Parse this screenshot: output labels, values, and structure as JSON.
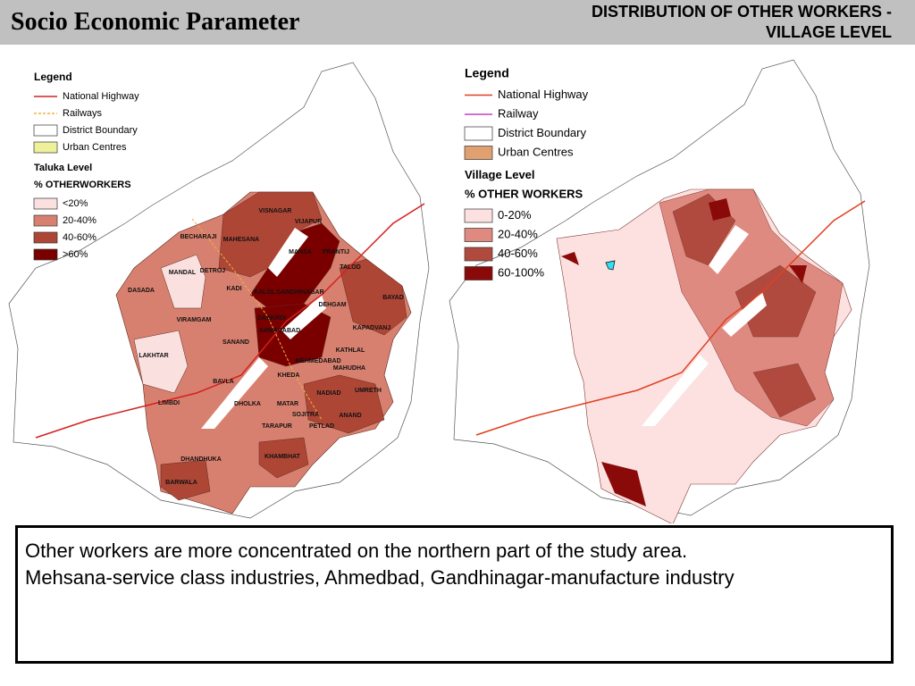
{
  "header": {
    "title": "Socio Economic Parameter",
    "subtitle_lines": [
      "DISTRIBUTION OF OTHER WORKERS -",
      "VILLAGE LEVEL"
    ]
  },
  "left_map": {
    "legend_title": "Legend",
    "items": [
      {
        "label": "National Highway",
        "color": "#d42020",
        "style": "line"
      },
      {
        "label": "Railways",
        "color": "#f0b040",
        "style": "dash"
      },
      {
        "label": "District Boundary",
        "color": "#ffffff",
        "style": "box"
      },
      {
        "label": "Urban Centres",
        "color": "#eef09a",
        "style": "box"
      }
    ],
    "level_title": "Taluka Level",
    "measure_title": "% OTHERWORKERS",
    "classes": [
      {
        "label": "<20%",
        "color": "#fbe0e0"
      },
      {
        "label": "20-40%",
        "color": "#d8806f"
      },
      {
        "label": "40-60%",
        "color": "#ae4636"
      },
      {
        "label": ">60%",
        "color": "#7a0000"
      }
    ],
    "talukas": [
      "VISNAGAR",
      "VIJAPUR",
      "BECHARAJI",
      "MAHESANA",
      "MANSA",
      "PRANTIJ",
      "TALOD",
      "MANDAL",
      "DETROJ",
      "KADI",
      "KALOL",
      "GANDHINAGAR",
      "BAYAD",
      "DASADA",
      "DEHGAM",
      "VIRAMGAM",
      "DASKROI",
      "AHMADABAD",
      "KAPADVANJ",
      "SANAND",
      "LAKHTAR",
      "MEHMEDABAD",
      "MAHUDHA",
      "KATHLAL",
      "BAVLA",
      "KHEDA",
      "NADIAD",
      "UMRETH",
      "LIMBDI",
      "DHOLKA",
      "MATAR",
      "SOJITRA",
      "ANAND",
      "PETLAD",
      "TARAPUR",
      "DHANDHUKA",
      "KHAMBHAT",
      "BARWALA"
    ]
  },
  "right_map": {
    "legend_title": "Legend",
    "items": [
      {
        "label": "National Highway",
        "color": "#e04020",
        "style": "line"
      },
      {
        "label": "Railway",
        "color": "#c040c0",
        "style": "line"
      },
      {
        "label": "District Boundary",
        "color": "#ffffff",
        "style": "box"
      },
      {
        "label": "Urban Centres",
        "color": "#e0a070",
        "style": "box"
      }
    ],
    "level_title": "Village Level",
    "measure_title": "% OTHER WORKERS",
    "classes": [
      {
        "label": "0-20%",
        "color": "#fde0e0"
      },
      {
        "label": "20-40%",
        "color": "#df8a80"
      },
      {
        "label": "40-60%",
        "color": "#b04a3e"
      },
      {
        "label": "60-100%",
        "color": "#8a0a0a"
      }
    ]
  },
  "caption": {
    "lines": [
      "Other workers are more concentrated on the northern part of  the study area.",
      "Mehsana-service class industries, Ahmedbad, Gandhinagar-manufacture industry"
    ]
  }
}
